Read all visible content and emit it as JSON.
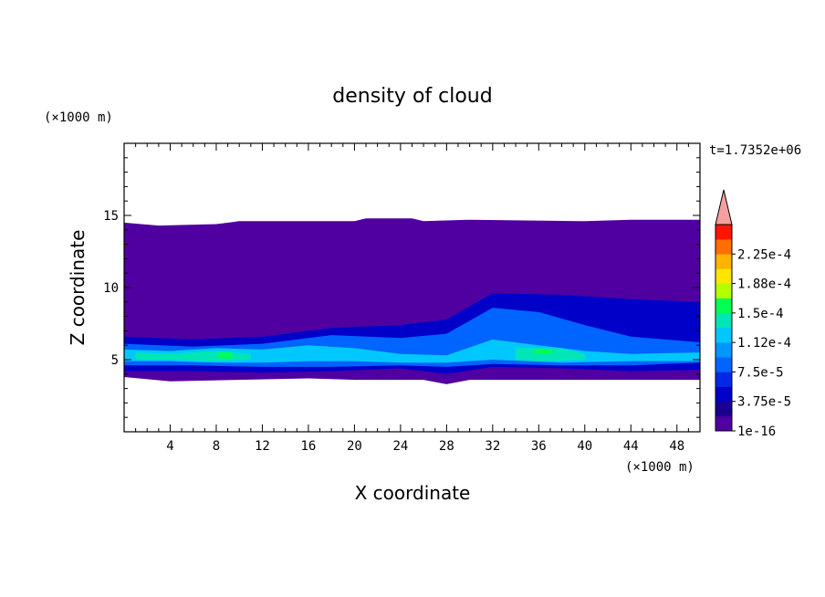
{
  "chart_data": {
    "type": "heatmap",
    "title": "density of cloud",
    "xlabel": "X coordinate",
    "ylabel": "Z coordinate",
    "x_unit": "(×1000 m)",
    "y_unit": "(×1000 m)",
    "time_label": "t=1.7352e+06",
    "xlim": [
      0,
      50
    ],
    "ylim": [
      0,
      20
    ],
    "xticks": [
      4,
      8,
      12,
      16,
      20,
      24,
      28,
      32,
      36,
      40,
      44,
      48
    ],
    "yticks": [
      5,
      10,
      15
    ],
    "colorbar": {
      "levels": [
        0,
        1.875e-05,
        3.75e-05,
        5.625e-05,
        7.5e-05,
        9.375e-05,
        0.0001125,
        0.00013125,
        0.00015,
        0.00016875,
        0.0001875,
        0.00020625,
        0.000225,
        0.00024375
      ],
      "colors": [
        "#5000a0",
        "#1a0090",
        "#0000c8",
        "#0028e6",
        "#0064ff",
        "#0096ff",
        "#00c8ff",
        "#00e6b4",
        "#00ff50",
        "#b4ff00",
        "#ffe600",
        "#ffb400",
        "#ff6e00",
        "#ff1400"
      ],
      "labels": [
        {
          "value": 0,
          "text": "1e-16"
        },
        {
          "value": 3.75e-05,
          "text": "3.75e-5"
        },
        {
          "value": 7.5e-05,
          "text": "7.5e-5"
        },
        {
          "value": 0.0001125,
          "text": "1.12e-4"
        },
        {
          "value": 0.00015,
          "text": "1.5e-4"
        },
        {
          "value": 0.0001875,
          "text": "1.88e-4"
        },
        {
          "value": 0.000225,
          "text": "2.25e-4"
        }
      ],
      "overflow_color": "#f5a0a0"
    },
    "cloud_region": {
      "top_km": [
        [
          0,
          14.5
        ],
        [
          3,
          14.3
        ],
        [
          8,
          14.4
        ],
        [
          10,
          14.6
        ],
        [
          20,
          14.6
        ],
        [
          21,
          14.8
        ],
        [
          25,
          14.8
        ],
        [
          26,
          14.6
        ],
        [
          30,
          14.7
        ],
        [
          40,
          14.6
        ],
        [
          44,
          14.7
        ],
        [
          50,
          14.7
        ]
      ],
      "base_km": [
        [
          0,
          3.8
        ],
        [
          4,
          3.5
        ],
        [
          10,
          3.6
        ],
        [
          16,
          3.7
        ],
        [
          20,
          3.6
        ],
        [
          26,
          3.6
        ],
        [
          28,
          3.3
        ],
        [
          30,
          3.6
        ],
        [
          40,
          3.6
        ],
        [
          50,
          3.6
        ]
      ]
    },
    "bands": [
      {
        "color": "#0000c8",
        "points": [
          [
            0,
            6.6
          ],
          [
            6,
            6.4
          ],
          [
            12,
            6.6
          ],
          [
            18,
            7.2
          ],
          [
            24,
            7.4
          ],
          [
            28,
            7.8
          ],
          [
            32,
            9.6
          ],
          [
            38,
            9.5
          ],
          [
            44,
            9.2
          ],
          [
            50,
            9.0
          ],
          [
            50,
            4.3
          ],
          [
            44,
            4.2
          ],
          [
            38,
            4.4
          ],
          [
            32,
            4.5
          ],
          [
            28,
            4.0
          ],
          [
            24,
            4.4
          ],
          [
            18,
            4.2
          ],
          [
            12,
            4.1
          ],
          [
            6,
            4.2
          ],
          [
            0,
            4.2
          ]
        ]
      },
      {
        "color": "#0064ff",
        "points": [
          [
            0,
            6.1
          ],
          [
            6,
            5.9
          ],
          [
            12,
            6.1
          ],
          [
            18,
            6.7
          ],
          [
            24,
            6.5
          ],
          [
            28,
            6.8
          ],
          [
            32,
            8.6
          ],
          [
            36,
            8.3
          ],
          [
            40,
            7.4
          ],
          [
            44,
            6.6
          ],
          [
            50,
            6.2
          ],
          [
            50,
            4.8
          ],
          [
            44,
            4.6
          ],
          [
            38,
            4.6
          ],
          [
            32,
            4.7
          ],
          [
            28,
            4.5
          ],
          [
            24,
            4.6
          ],
          [
            18,
            4.5
          ],
          [
            12,
            4.5
          ],
          [
            6,
            4.6
          ],
          [
            0,
            4.6
          ]
        ]
      },
      {
        "color": "#00c8ff",
        "points": [
          [
            0,
            5.7
          ],
          [
            4,
            5.6
          ],
          [
            8,
            5.8
          ],
          [
            12,
            5.7
          ],
          [
            16,
            6.0
          ],
          [
            20,
            5.8
          ],
          [
            24,
            5.4
          ],
          [
            28,
            5.3
          ],
          [
            32,
            6.4
          ],
          [
            36,
            6.0
          ],
          [
            40,
            5.6
          ],
          [
            44,
            5.4
          ],
          [
            50,
            5.5
          ],
          [
            50,
            4.9
          ],
          [
            44,
            4.9
          ],
          [
            38,
            4.8
          ],
          [
            32,
            5.0
          ],
          [
            28,
            4.8
          ],
          [
            24,
            4.8
          ],
          [
            20,
            4.9
          ],
          [
            16,
            4.9
          ],
          [
            12,
            4.8
          ],
          [
            8,
            4.8
          ],
          [
            4,
            4.9
          ],
          [
            0,
            4.9
          ]
        ]
      },
      {
        "color": "#00e6b4",
        "points": [
          [
            1,
            5.5
          ],
          [
            4,
            5.4
          ],
          [
            8,
            5.6
          ],
          [
            11,
            5.4
          ],
          [
            11,
            5.0
          ],
          [
            8,
            4.9
          ],
          [
            4,
            5.0
          ],
          [
            1,
            5.0
          ]
        ]
      },
      {
        "color": "#00e6b4",
        "points": [
          [
            34,
            5.8
          ],
          [
            38,
            5.8
          ],
          [
            40,
            5.4
          ],
          [
            40,
            5.0
          ],
          [
            36,
            4.9
          ],
          [
            34,
            5.0
          ]
        ]
      },
      {
        "color": "#00ff50",
        "points": [
          [
            8.2,
            5.5
          ],
          [
            9.4,
            5.5
          ],
          [
            9.4,
            5.1
          ],
          [
            8.2,
            5.1
          ]
        ]
      },
      {
        "color": "#00ff50",
        "points": [
          [
            35.6,
            5.7
          ],
          [
            37.2,
            5.7
          ],
          [
            37.2,
            5.4
          ],
          [
            35.6,
            5.4
          ]
        ]
      }
    ]
  }
}
